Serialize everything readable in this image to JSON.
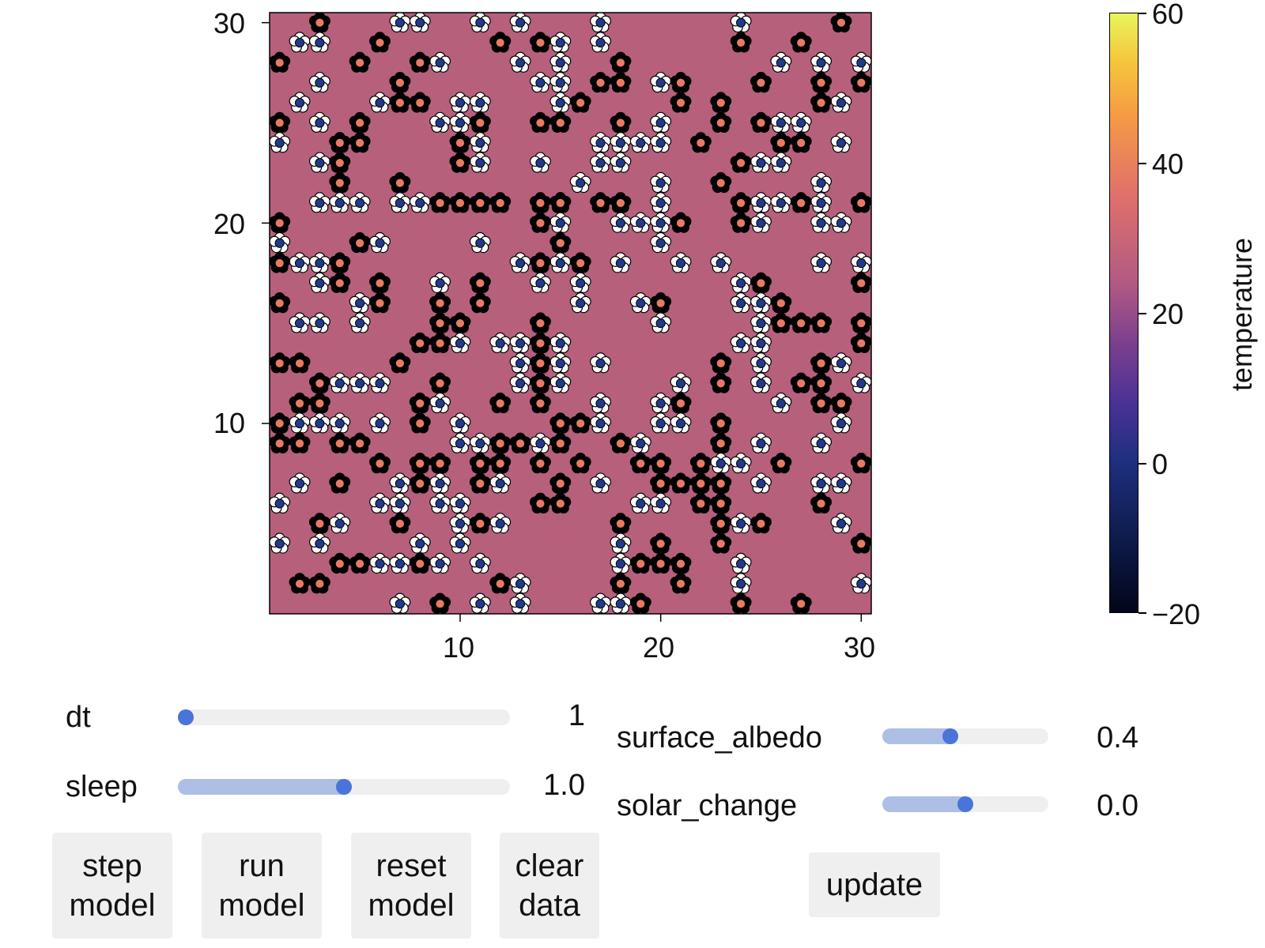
{
  "chart_data": {
    "type": "heatmap",
    "grid_size": 30,
    "xlim": [
      0.5,
      30.5
    ],
    "ylim": [
      0.5,
      30.5
    ],
    "background_temperature": 20,
    "x_ticks": [
      "10",
      "20",
      "30"
    ],
    "y_ticks": [
      "10",
      "20",
      "30"
    ],
    "x_tick_values": [
      10,
      20,
      30
    ],
    "y_tick_values": [
      10,
      20,
      30
    ],
    "colorbar": {
      "label": "temperature",
      "range": [
        -20,
        60
      ],
      "ticks": [
        "60",
        "40",
        "20",
        "0",
        "−20"
      ],
      "tick_values": [
        60,
        40,
        20,
        0,
        -20
      ]
    },
    "daisy_colors": {
      "white_petal": "#ffffff",
      "white_center": "#203a8c",
      "black_petal": "#000000",
      "black_center": "#e97a62"
    },
    "white_daisies": [
      [
        2,
        29
      ],
      [
        3,
        29
      ],
      [
        7,
        30
      ],
      [
        8,
        30
      ],
      [
        11,
        30
      ],
      [
        13,
        30
      ],
      [
        17,
        30
      ],
      [
        24,
        30
      ],
      [
        9,
        28
      ],
      [
        12,
        29
      ],
      [
        13,
        28
      ],
      [
        15,
        29
      ],
      [
        15,
        28
      ],
      [
        17,
        29
      ],
      [
        20,
        27
      ],
      [
        3,
        27
      ],
      [
        14,
        27
      ],
      [
        15,
        27
      ],
      [
        25,
        27
      ],
      [
        26,
        28
      ],
      [
        28,
        28
      ],
      [
        30,
        28
      ],
      [
        2,
        26
      ],
      [
        6,
        26
      ],
      [
        10,
        26
      ],
      [
        11,
        26
      ],
      [
        15,
        26
      ],
      [
        29,
        26
      ],
      [
        3,
        25
      ],
      [
        9,
        25
      ],
      [
        10,
        25
      ],
      [
        20,
        25
      ],
      [
        26,
        25
      ],
      [
        27,
        25
      ],
      [
        1,
        24
      ],
      [
        4,
        24
      ],
      [
        11,
        24
      ],
      [
        17,
        24
      ],
      [
        18,
        24
      ],
      [
        19,
        24
      ],
      [
        20,
        24
      ],
      [
        29,
        24
      ],
      [
        3,
        23
      ],
      [
        11,
        23
      ],
      [
        14,
        23
      ],
      [
        17,
        23
      ],
      [
        18,
        23
      ],
      [
        25,
        23
      ],
      [
        26,
        23
      ],
      [
        16,
        22
      ],
      [
        20,
        22
      ],
      [
        28,
        22
      ],
      [
        3,
        21
      ],
      [
        4,
        21
      ],
      [
        5,
        21
      ],
      [
        7,
        21
      ],
      [
        8,
        21
      ],
      [
        15,
        21
      ],
      [
        20,
        21
      ],
      [
        25,
        21
      ],
      [
        26,
        21
      ],
      [
        28,
        21
      ],
      [
        15,
        20
      ],
      [
        18,
        20
      ],
      [
        19,
        20
      ],
      [
        20,
        20
      ],
      [
        25,
        20
      ],
      [
        28,
        20
      ],
      [
        29,
        20
      ],
      [
        1,
        19
      ],
      [
        6,
        19
      ],
      [
        11,
        19
      ],
      [
        20,
        19
      ],
      [
        2,
        18
      ],
      [
        3,
        18
      ],
      [
        13,
        18
      ],
      [
        15,
        18
      ],
      [
        18,
        18
      ],
      [
        21,
        18
      ],
      [
        23,
        18
      ],
      [
        28,
        18
      ],
      [
        30,
        18
      ],
      [
        3,
        17
      ],
      [
        9,
        17
      ],
      [
        14,
        17
      ],
      [
        16,
        17
      ],
      [
        24,
        17
      ],
      [
        5,
        16
      ],
      [
        9,
        16
      ],
      [
        16,
        16
      ],
      [
        19,
        16
      ],
      [
        24,
        16
      ],
      [
        25,
        16
      ],
      [
        2,
        15
      ],
      [
        3,
        15
      ],
      [
        5,
        15
      ],
      [
        20,
        15
      ],
      [
        25,
        15
      ],
      [
        10,
        14
      ],
      [
        12,
        14
      ],
      [
        13,
        14
      ],
      [
        15,
        14
      ],
      [
        24,
        14
      ],
      [
        25,
        14
      ],
      [
        13,
        13
      ],
      [
        15,
        13
      ],
      [
        17,
        13
      ],
      [
        25,
        13
      ],
      [
        29,
        13
      ],
      [
        4,
        12
      ],
      [
        5,
        12
      ],
      [
        6,
        12
      ],
      [
        13,
        12
      ],
      [
        15,
        12
      ],
      [
        21,
        12
      ],
      [
        25,
        12
      ],
      [
        30,
        12
      ],
      [
        9,
        11
      ],
      [
        17,
        11
      ],
      [
        20,
        11
      ],
      [
        26,
        11
      ],
      [
        2,
        10
      ],
      [
        3,
        10
      ],
      [
        4,
        10
      ],
      [
        6,
        10
      ],
      [
        10,
        10
      ],
      [
        17,
        10
      ],
      [
        20,
        10
      ],
      [
        21,
        10
      ],
      [
        29,
        10
      ],
      [
        10,
        9
      ],
      [
        11,
        9
      ],
      [
        14,
        9
      ],
      [
        19,
        9
      ],
      [
        25,
        9
      ],
      [
        28,
        9
      ],
      [
        23,
        8
      ],
      [
        24,
        8
      ],
      [
        2,
        7
      ],
      [
        7,
        7
      ],
      [
        9,
        7
      ],
      [
        12,
        7
      ],
      [
        17,
        7
      ],
      [
        25,
        7
      ],
      [
        28,
        7
      ],
      [
        29,
        7
      ],
      [
        1,
        6
      ],
      [
        6,
        6
      ],
      [
        7,
        6
      ],
      [
        9,
        6
      ],
      [
        10,
        6
      ],
      [
        19,
        6
      ],
      [
        20,
        6
      ],
      [
        4,
        5
      ],
      [
        10,
        5
      ],
      [
        12,
        5
      ],
      [
        24,
        5
      ],
      [
        29,
        5
      ],
      [
        1,
        4
      ],
      [
        3,
        4
      ],
      [
        8,
        4
      ],
      [
        10,
        4
      ],
      [
        18,
        4
      ],
      [
        6,
        3
      ],
      [
        7,
        3
      ],
      [
        9,
        3
      ],
      [
        11,
        3
      ],
      [
        18,
        3
      ],
      [
        24,
        3
      ],
      [
        13,
        2
      ],
      [
        24,
        2
      ],
      [
        30,
        2
      ],
      [
        7,
        1
      ],
      [
        11,
        1
      ],
      [
        13,
        1
      ],
      [
        17,
        1
      ],
      [
        18,
        1
      ]
    ],
    "black_daisies": [
      [
        3,
        30
      ],
      [
        29,
        30
      ],
      [
        6,
        29
      ],
      [
        12,
        29
      ],
      [
        14,
        29
      ],
      [
        24,
        29
      ],
      [
        27,
        29
      ],
      [
        1,
        28
      ],
      [
        5,
        28
      ],
      [
        8,
        28
      ],
      [
        18,
        28
      ],
      [
        7,
        27
      ],
      [
        17,
        27
      ],
      [
        18,
        27
      ],
      [
        21,
        27
      ],
      [
        25,
        27
      ],
      [
        28,
        27
      ],
      [
        30,
        27
      ],
      [
        7,
        26
      ],
      [
        8,
        26
      ],
      [
        16,
        26
      ],
      [
        21,
        26
      ],
      [
        23,
        26
      ],
      [
        28,
        26
      ],
      [
        1,
        25
      ],
      [
        5,
        25
      ],
      [
        11,
        25
      ],
      [
        14,
        25
      ],
      [
        15,
        25
      ],
      [
        18,
        25
      ],
      [
        23,
        25
      ],
      [
        25,
        25
      ],
      [
        4,
        24
      ],
      [
        5,
        24
      ],
      [
        10,
        24
      ],
      [
        22,
        24
      ],
      [
        26,
        24
      ],
      [
        27,
        24
      ],
      [
        4,
        23
      ],
      [
        10,
        23
      ],
      [
        24,
        23
      ],
      [
        4,
        22
      ],
      [
        7,
        22
      ],
      [
        23,
        22
      ],
      [
        9,
        21
      ],
      [
        10,
        21
      ],
      [
        11,
        21
      ],
      [
        12,
        21
      ],
      [
        14,
        21
      ],
      [
        15,
        21
      ],
      [
        17,
        21
      ],
      [
        18,
        21
      ],
      [
        24,
        21
      ],
      [
        27,
        21
      ],
      [
        30,
        21
      ],
      [
        1,
        20
      ],
      [
        14,
        20
      ],
      [
        21,
        20
      ],
      [
        24,
        20
      ],
      [
        5,
        19
      ],
      [
        15,
        19
      ],
      [
        1,
        18
      ],
      [
        4,
        18
      ],
      [
        14,
        18
      ],
      [
        16,
        18
      ],
      [
        4,
        17
      ],
      [
        6,
        17
      ],
      [
        11,
        17
      ],
      [
        25,
        17
      ],
      [
        30,
        17
      ],
      [
        1,
        16
      ],
      [
        6,
        16
      ],
      [
        9,
        16
      ],
      [
        11,
        16
      ],
      [
        20,
        16
      ],
      [
        26,
        16
      ],
      [
        9,
        15
      ],
      [
        10,
        15
      ],
      [
        14,
        15
      ],
      [
        26,
        15
      ],
      [
        27,
        15
      ],
      [
        28,
        15
      ],
      [
        30,
        15
      ],
      [
        8,
        14
      ],
      [
        9,
        14
      ],
      [
        14,
        14
      ],
      [
        30,
        14
      ],
      [
        1,
        13
      ],
      [
        2,
        13
      ],
      [
        7,
        13
      ],
      [
        14,
        13
      ],
      [
        23,
        13
      ],
      [
        28,
        13
      ],
      [
        3,
        12
      ],
      [
        9,
        12
      ],
      [
        14,
        12
      ],
      [
        23,
        12
      ],
      [
        27,
        12
      ],
      [
        28,
        12
      ],
      [
        2,
        11
      ],
      [
        3,
        11
      ],
      [
        8,
        11
      ],
      [
        12,
        11
      ],
      [
        14,
        11
      ],
      [
        21,
        11
      ],
      [
        28,
        11
      ],
      [
        29,
        11
      ],
      [
        1,
        10
      ],
      [
        8,
        10
      ],
      [
        15,
        10
      ],
      [
        16,
        10
      ],
      [
        23,
        10
      ],
      [
        1,
        9
      ],
      [
        2,
        9
      ],
      [
        4,
        9
      ],
      [
        5,
        9
      ],
      [
        12,
        9
      ],
      [
        13,
        9
      ],
      [
        15,
        9
      ],
      [
        18,
        9
      ],
      [
        23,
        9
      ],
      [
        6,
        8
      ],
      [
        8,
        8
      ],
      [
        9,
        8
      ],
      [
        11,
        8
      ],
      [
        12,
        8
      ],
      [
        14,
        8
      ],
      [
        16,
        8
      ],
      [
        19,
        8
      ],
      [
        20,
        8
      ],
      [
        22,
        8
      ],
      [
        26,
        8
      ],
      [
        30,
        8
      ],
      [
        4,
        7
      ],
      [
        8,
        7
      ],
      [
        11,
        7
      ],
      [
        15,
        7
      ],
      [
        20,
        7
      ],
      [
        21,
        7
      ],
      [
        22,
        7
      ],
      [
        23,
        7
      ],
      [
        14,
        6
      ],
      [
        15,
        6
      ],
      [
        22,
        6
      ],
      [
        23,
        6
      ],
      [
        28,
        6
      ],
      [
        3,
        5
      ],
      [
        7,
        5
      ],
      [
        11,
        5
      ],
      [
        18,
        5
      ],
      [
        23,
        5
      ],
      [
        25,
        5
      ],
      [
        20,
        4
      ],
      [
        23,
        4
      ],
      [
        30,
        4
      ],
      [
        4,
        3
      ],
      [
        5,
        3
      ],
      [
        8,
        3
      ],
      [
        19,
        3
      ],
      [
        20,
        3
      ],
      [
        21,
        3
      ],
      [
        2,
        2
      ],
      [
        3,
        2
      ],
      [
        12,
        2
      ],
      [
        18,
        2
      ],
      [
        21,
        2
      ],
      [
        9,
        1
      ],
      [
        19,
        1
      ],
      [
        24,
        1
      ],
      [
        27,
        1
      ]
    ]
  },
  "controls": {
    "dt": {
      "label": "dt",
      "value": "1",
      "fraction": 0.0
    },
    "sleep": {
      "label": "sleep",
      "value": "1.0",
      "fraction": 0.5
    },
    "surface_albedo": {
      "label": "surface_albedo",
      "value": "0.4",
      "fraction": 0.4
    },
    "solar_change": {
      "label": "solar_change",
      "value": "0.0",
      "fraction": 0.5
    }
  },
  "buttons": {
    "step": [
      "step",
      "model"
    ],
    "run": [
      "run",
      "model"
    ],
    "reset": [
      "reset",
      "model"
    ],
    "clear": [
      "clear",
      "data"
    ],
    "update": "update"
  }
}
